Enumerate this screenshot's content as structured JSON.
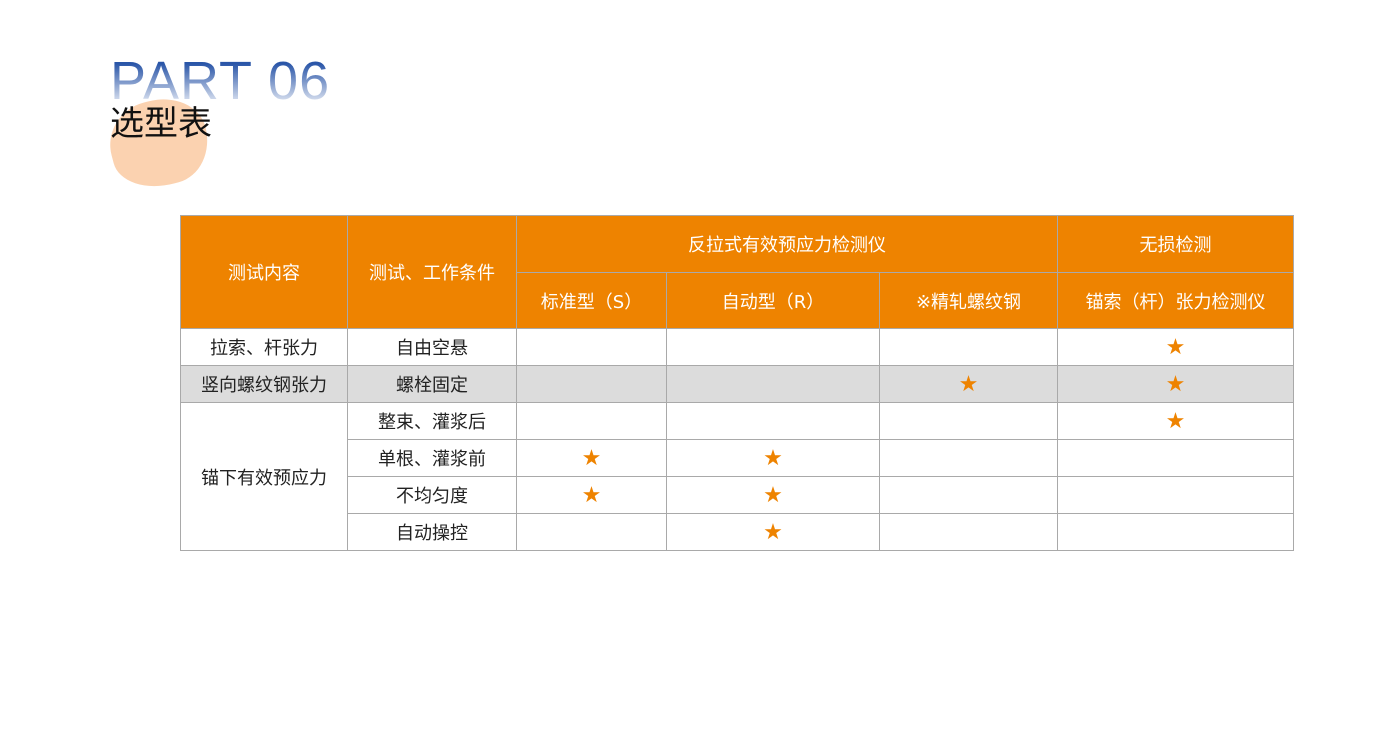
{
  "header": {
    "part": "PART 06",
    "title": "选型表"
  },
  "table": {
    "col_test": "测试内容",
    "col_cond": "测试、工作条件",
    "group1": "反拉式有效预应力检测仪",
    "group2": "无损检测",
    "sub": [
      "标准型（S）",
      "自动型（R）",
      "※精轧螺纹钢",
      "锚索（杆）张力检测仪"
    ],
    "rows": [
      {
        "test": "拉索、杆张力",
        "cond": "自由空悬",
        "marks": [
          false,
          false,
          false,
          true
        ]
      },
      {
        "test": "竖向螺纹钢张力",
        "cond": "螺栓固定",
        "marks": [
          false,
          false,
          true,
          true
        ]
      },
      {
        "test": "锚下有效预应力",
        "cond": "整束、灌浆后",
        "marks": [
          false,
          false,
          false,
          true
        ]
      },
      {
        "cond": "单根、灌浆前",
        "marks": [
          true,
          true,
          false,
          false
        ]
      },
      {
        "cond": "不均匀度",
        "marks": [
          true,
          true,
          false,
          false
        ]
      },
      {
        "cond": "自动操控",
        "marks": [
          false,
          true,
          false,
          false
        ]
      }
    ],
    "mark_symbol": "★",
    "accent": "#ee8300"
  }
}
